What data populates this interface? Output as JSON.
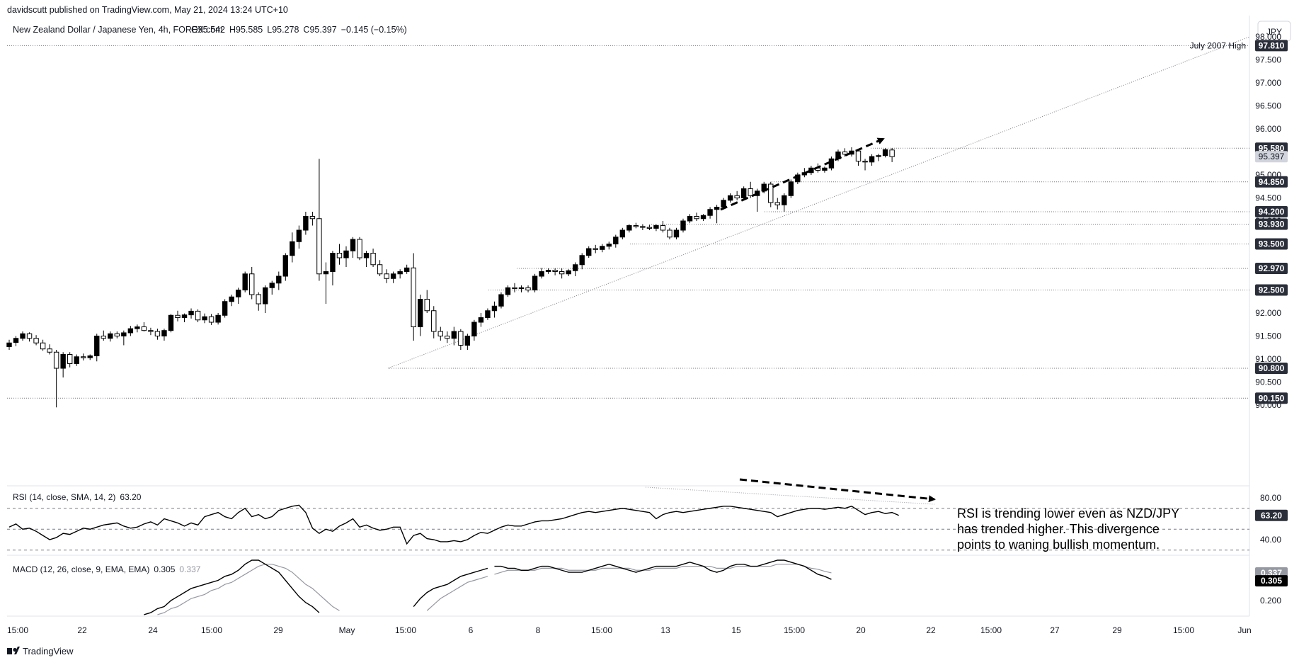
{
  "published": "davidscutt published on TradingView.com, May 21, 2024 13:24 UTC+10",
  "brand": "TradingView",
  "chart_data": {
    "type": "candlestick",
    "title": "New Zealand Dollar / Japanese Yen, 4h, FOREX.com",
    "ohlc_readout": {
      "O": "95.542",
      "H": "95.585",
      "L": "95.278",
      "C": "95.397",
      "change": "−0.145 (−0.15%)"
    },
    "currency": "JPY",
    "price_axis": {
      "min": 89.93,
      "max": 98.1,
      "ticks": [
        "90.000",
        "90.500",
        "91.000",
        "91.500",
        "92.000",
        "92.500",
        "93.000",
        "93.500",
        "94.000",
        "94.500",
        "95.000",
        "95.500",
        "96.000",
        "96.500",
        "97.000",
        "97.500",
        "98.000"
      ]
    },
    "time_axis": {
      "ticks": [
        "15:00",
        "22",
        "24",
        "15:00",
        "29",
        "May",
        "15:00",
        "6",
        "8",
        "15:00",
        "13",
        "15",
        "15:00",
        "20",
        "22",
        "15:00",
        "27",
        "29",
        "15:00",
        "Jun"
      ]
    },
    "price_levels": [
      {
        "value": "97.810",
        "note": "July 2007 High"
      },
      {
        "value": "95.580"
      },
      {
        "value": "94.850"
      },
      {
        "value": "94.200"
      },
      {
        "value": "93.930"
      },
      {
        "value": "93.500"
      },
      {
        "value": "92.970"
      },
      {
        "value": "92.500"
      },
      {
        "value": "90.800"
      },
      {
        "value": "90.150"
      }
    ],
    "current_price": "95.397",
    "candles": [
      [
        91.27,
        91.42,
        91.2,
        91.35
      ],
      [
        91.36,
        91.5,
        91.28,
        91.45
      ],
      [
        91.45,
        91.6,
        91.4,
        91.55
      ],
      [
        91.55,
        91.58,
        91.38,
        91.45
      ],
      [
        91.45,
        91.52,
        91.3,
        91.35
      ],
      [
        91.35,
        91.42,
        91.18,
        91.22
      ],
      [
        91.22,
        91.32,
        91.1,
        91.15
      ],
      [
        91.15,
        91.2,
        89.95,
        90.8
      ],
      [
        90.8,
        91.15,
        90.6,
        91.1
      ],
      [
        91.1,
        91.15,
        90.82,
        90.9
      ],
      [
        90.9,
        91.1,
        90.85,
        91.05
      ],
      [
        91.05,
        91.12,
        90.97,
        91.03
      ],
      [
        91.03,
        91.1,
        90.98,
        91.07
      ],
      [
        91.07,
        91.55,
        90.95,
        91.5
      ],
      [
        91.5,
        91.62,
        91.4,
        91.45
      ],
      [
        91.45,
        91.6,
        91.38,
        91.55
      ],
      [
        91.55,
        91.6,
        91.45,
        91.5
      ],
      [
        91.5,
        91.62,
        91.3,
        91.57
      ],
      [
        91.57,
        91.72,
        91.5,
        91.66
      ],
      [
        91.66,
        91.75,
        91.58,
        91.7
      ],
      [
        91.7,
        91.8,
        91.6,
        91.62
      ],
      [
        91.62,
        91.68,
        91.52,
        91.6
      ],
      [
        91.6,
        91.66,
        91.42,
        91.5
      ],
      [
        91.5,
        91.66,
        91.4,
        91.62
      ],
      [
        91.62,
        91.98,
        91.58,
        91.95
      ],
      [
        91.95,
        92.05,
        91.82,
        91.9
      ],
      [
        91.9,
        91.99,
        91.8,
        91.96
      ],
      [
        91.96,
        92.1,
        91.88,
        92.04
      ],
      [
        92.04,
        92.08,
        91.8,
        91.85
      ],
      [
        91.85,
        91.99,
        91.78,
        91.92
      ],
      [
        91.92,
        91.98,
        91.74,
        91.8
      ],
      [
        91.8,
        92.0,
        91.75,
        91.95
      ],
      [
        91.95,
        92.3,
        91.9,
        92.25
      ],
      [
        92.25,
        92.4,
        92.15,
        92.35
      ],
      [
        92.35,
        92.55,
        92.2,
        92.5
      ],
      [
        92.5,
        92.9,
        92.45,
        92.85
      ],
      [
        92.85,
        93.0,
        92.3,
        92.4
      ],
      [
        92.4,
        92.45,
        92.05,
        92.2
      ],
      [
        92.2,
        92.6,
        92.0,
        92.55
      ],
      [
        92.55,
        92.7,
        92.4,
        92.65
      ],
      [
        92.65,
        92.9,
        92.5,
        92.8
      ],
      [
        92.8,
        93.3,
        92.7,
        93.25
      ],
      [
        93.25,
        93.75,
        93.1,
        93.55
      ],
      [
        93.55,
        93.9,
        93.4,
        93.8
      ],
      [
        93.8,
        94.2,
        93.7,
        94.1
      ],
      [
        94.1,
        94.2,
        93.9,
        94.05
      ],
      [
        94.05,
        95.35,
        92.7,
        92.85
      ],
      [
        92.85,
        93.1,
        92.2,
        92.9
      ],
      [
        92.9,
        93.35,
        92.6,
        93.3
      ],
      [
        93.3,
        93.5,
        93.05,
        93.2
      ],
      [
        93.2,
        93.45,
        93.0,
        93.35
      ],
      [
        93.35,
        93.65,
        93.2,
        93.6
      ],
      [
        93.6,
        93.65,
        93.15,
        93.2
      ],
      [
        93.2,
        93.35,
        93.0,
        93.3
      ],
      [
        93.3,
        93.4,
        93.0,
        93.05
      ],
      [
        93.05,
        93.15,
        92.8,
        92.85
      ],
      [
        92.85,
        92.95,
        92.65,
        92.75
      ],
      [
        92.75,
        92.9,
        92.65,
        92.85
      ],
      [
        92.85,
        92.95,
        92.75,
        92.9
      ],
      [
        92.9,
        93.05,
        92.85,
        92.98
      ],
      [
        92.98,
        93.3,
        91.4,
        91.7
      ],
      [
        91.7,
        92.4,
        91.5,
        92.3
      ],
      [
        92.3,
        92.5,
        92.0,
        92.05
      ],
      [
        92.05,
        92.15,
        91.45,
        91.6
      ],
      [
        91.6,
        91.7,
        91.4,
        91.5
      ],
      [
        91.5,
        91.6,
        91.35,
        91.45
      ],
      [
        91.45,
        91.7,
        91.3,
        91.6
      ],
      [
        91.6,
        91.65,
        91.2,
        91.3
      ],
      [
        91.3,
        91.55,
        91.2,
        91.5
      ],
      [
        91.5,
        91.85,
        91.4,
        91.8
      ],
      [
        91.8,
        92.0,
        91.7,
        91.9
      ],
      [
        91.9,
        92.1,
        91.85,
        92.05
      ],
      [
        92.05,
        92.25,
        91.9,
        92.15
      ],
      [
        92.15,
        92.45,
        92.1,
        92.4
      ],
      [
        92.4,
        92.6,
        92.35,
        92.55
      ],
      [
        92.55,
        92.65,
        92.45,
        92.53
      ],
      [
        92.53,
        92.6,
        92.45,
        92.55
      ],
      [
        92.55,
        92.6,
        92.45,
        92.5
      ],
      [
        92.5,
        92.85,
        92.45,
        92.8
      ],
      [
        92.8,
        92.98,
        92.75,
        92.9
      ],
      [
        92.9,
        92.97,
        92.85,
        92.93
      ],
      [
        92.93,
        92.97,
        92.82,
        92.9
      ],
      [
        92.9,
        92.97,
        92.75,
        92.85
      ],
      [
        92.85,
        92.95,
        92.8,
        92.92
      ],
      [
        92.92,
        93.1,
        92.8,
        93.05
      ],
      [
        93.05,
        93.3,
        92.95,
        93.25
      ],
      [
        93.25,
        93.45,
        93.2,
        93.4
      ],
      [
        93.4,
        93.48,
        93.3,
        93.38
      ],
      [
        93.38,
        93.5,
        93.32,
        93.45
      ],
      [
        93.45,
        93.55,
        93.38,
        93.5
      ],
      [
        93.5,
        93.7,
        93.42,
        93.65
      ],
      [
        93.65,
        93.85,
        93.6,
        93.8
      ],
      [
        93.8,
        93.93,
        93.75,
        93.9
      ],
      [
        93.9,
        93.96,
        93.84,
        93.88
      ],
      [
        93.88,
        93.93,
        93.8,
        93.86
      ],
      [
        93.86,
        93.92,
        93.8,
        93.84
      ],
      [
        93.84,
        93.93,
        93.78,
        93.9
      ],
      [
        93.9,
        94.0,
        93.75,
        93.8
      ],
      [
        93.8,
        93.85,
        93.6,
        93.65
      ],
      [
        93.65,
        93.85,
        93.6,
        93.8
      ],
      [
        93.8,
        94.05,
        93.75,
        94.0
      ],
      [
        94.0,
        94.15,
        93.95,
        94.1
      ],
      [
        94.1,
        94.18,
        94.0,
        94.05
      ],
      [
        94.05,
        94.15,
        94.0,
        94.12
      ],
      [
        94.12,
        94.3,
        94.05,
        94.25
      ],
      [
        94.25,
        94.35,
        93.95,
        94.3
      ],
      [
        94.3,
        94.5,
        94.25,
        94.45
      ],
      [
        94.45,
        94.6,
        94.4,
        94.55
      ],
      [
        94.55,
        94.65,
        94.45,
        94.5
      ],
      [
        94.5,
        94.75,
        94.45,
        94.7
      ],
      [
        94.7,
        94.85,
        94.5,
        94.55
      ],
      [
        94.55,
        94.7,
        94.2,
        94.65
      ],
      [
        94.65,
        94.85,
        94.6,
        94.8
      ],
      [
        94.8,
        94.85,
        94.3,
        94.4
      ],
      [
        94.4,
        94.5,
        94.25,
        94.35
      ],
      [
        94.35,
        94.6,
        94.2,
        94.55
      ],
      [
        94.55,
        94.9,
        94.5,
        94.85
      ],
      [
        94.85,
        95.05,
        94.8,
        95.0
      ],
      [
        95.0,
        95.15,
        94.95,
        95.05
      ],
      [
        95.05,
        95.2,
        95.0,
        95.15
      ],
      [
        95.15,
        95.25,
        95.05,
        95.1
      ],
      [
        95.1,
        95.18,
        95.05,
        95.15
      ],
      [
        95.15,
        95.4,
        95.1,
        95.35
      ],
      [
        95.35,
        95.55,
        95.3,
        95.5
      ],
      [
        95.5,
        95.58,
        95.4,
        95.45
      ],
      [
        95.45,
        95.6,
        95.4,
        95.52
      ],
      [
        95.52,
        95.56,
        95.2,
        95.3
      ],
      [
        95.3,
        95.35,
        95.1,
        95.28
      ],
      [
        95.28,
        95.45,
        95.2,
        95.4
      ],
      [
        95.4,
        95.46,
        95.3,
        95.42
      ],
      [
        95.42,
        95.58,
        95.38,
        95.55
      ],
      [
        95.542,
        95.585,
        95.278,
        95.397
      ]
    ],
    "rsi": {
      "label": "RSI (14, close, SMA, 14, 2)",
      "value": "63.20",
      "ticks": [
        "80.00",
        "40.00"
      ],
      "levels": [
        70,
        50,
        30
      ],
      "values": [
        52,
        55,
        50,
        51,
        48,
        44,
        40,
        42,
        46,
        45,
        48,
        51,
        50,
        52,
        54,
        55,
        56,
        53,
        51,
        52,
        55,
        57,
        54,
        60,
        58,
        56,
        53,
        56,
        54,
        62,
        64,
        66,
        62,
        60,
        66,
        70,
        62,
        64,
        60,
        62,
        68,
        70,
        72,
        73,
        66,
        51,
        46,
        50,
        48,
        53,
        56,
        60,
        52,
        54,
        51,
        49,
        50,
        52,
        52,
        36,
        44,
        46,
        41,
        40,
        38,
        38,
        39,
        38,
        40,
        44,
        47,
        46,
        49,
        52,
        54,
        53,
        53,
        55,
        57,
        58,
        58,
        59,
        60,
        62,
        64,
        66,
        67,
        66,
        67,
        68,
        69,
        70,
        69,
        68,
        67,
        66,
        60,
        64,
        66,
        67,
        66,
        67,
        68,
        69,
        70,
        71,
        72,
        72,
        71,
        70,
        69,
        68,
        67,
        66,
        62,
        64,
        66,
        68,
        69,
        70,
        70,
        69,
        70,
        71,
        70,
        72,
        68,
        64,
        66,
        67,
        65,
        66,
        63.2
      ]
    },
    "macd": {
      "label": "MACD (12, 26, close, 9, EMA, EMA)",
      "macd_value": "0.305",
      "signal_value": "0.337",
      "tick": "0.200",
      "gaps": [
        [
          0,
          16
        ],
        [
          56,
          72
        ]
      ],
      "macd": [
        0.05,
        0.06,
        0.07,
        0.07,
        0.06,
        0.05,
        0.04,
        0.03,
        0.02,
        0.02,
        0.03,
        0.04,
        0.05,
        0.06,
        0.07,
        0.08,
        0.09,
        0.1,
        0.11,
        0.12,
        0.13,
        0.14,
        0.16,
        0.17,
        0.2,
        0.22,
        0.24,
        0.26,
        0.27,
        0.28,
        0.29,
        0.3,
        0.32,
        0.33,
        0.35,
        0.38,
        0.4,
        0.4,
        0.38,
        0.36,
        0.34,
        0.3,
        0.26,
        0.22,
        0.19,
        0.17,
        0.14,
        0.1,
        0.08,
        0.07,
        0.05,
        0.04,
        0.03,
        0.02,
        0.01,
        0.0,
        0.0,
        0.02,
        0.06,
        0.12,
        0.17,
        0.21,
        0.24,
        0.26,
        0.27,
        0.28,
        0.3,
        0.32,
        0.33,
        0.34,
        0.35,
        0.36,
        0.37,
        0.37,
        0.36,
        0.36,
        0.35,
        0.35,
        0.36,
        0.37,
        0.37,
        0.36,
        0.35,
        0.34,
        0.34,
        0.34,
        0.35,
        0.36,
        0.37,
        0.38,
        0.37,
        0.36,
        0.35,
        0.34,
        0.35,
        0.36,
        0.37,
        0.37,
        0.37,
        0.37,
        0.38,
        0.39,
        0.38,
        0.37,
        0.35,
        0.34,
        0.35,
        0.37,
        0.38,
        0.38,
        0.37,
        0.37,
        0.38,
        0.39,
        0.4,
        0.4,
        0.39,
        0.38,
        0.37,
        0.35,
        0.33,
        0.32,
        0.305
      ],
      "signal": [
        0.04,
        0.05,
        0.05,
        0.06,
        0.06,
        0.06,
        0.05,
        0.05,
        0.04,
        0.04,
        0.04,
        0.04,
        0.04,
        0.05,
        0.05,
        0.06,
        0.07,
        0.08,
        0.09,
        0.1,
        0.11,
        0.12,
        0.13,
        0.14,
        0.16,
        0.17,
        0.19,
        0.21,
        0.22,
        0.23,
        0.25,
        0.26,
        0.28,
        0.29,
        0.31,
        0.33,
        0.35,
        0.37,
        0.38,
        0.38,
        0.37,
        0.36,
        0.34,
        0.31,
        0.28,
        0.26,
        0.23,
        0.2,
        0.17,
        0.15,
        0.12,
        0.1,
        0.08,
        0.06,
        0.04,
        0.03,
        0.02,
        0.02,
        0.03,
        0.05,
        0.08,
        0.11,
        0.15,
        0.18,
        0.21,
        0.23,
        0.25,
        0.27,
        0.29,
        0.3,
        0.31,
        0.32,
        0.33,
        0.34,
        0.35,
        0.35,
        0.35,
        0.35,
        0.35,
        0.36,
        0.36,
        0.36,
        0.36,
        0.35,
        0.35,
        0.35,
        0.35,
        0.35,
        0.36,
        0.36,
        0.36,
        0.36,
        0.36,
        0.35,
        0.35,
        0.35,
        0.36,
        0.36,
        0.36,
        0.36,
        0.37,
        0.37,
        0.37,
        0.37,
        0.37,
        0.36,
        0.36,
        0.36,
        0.37,
        0.37,
        0.37,
        0.37,
        0.37,
        0.37,
        0.38,
        0.38,
        0.38,
        0.38,
        0.37,
        0.36,
        0.355,
        0.345,
        0.337
      ]
    },
    "annotation": [
      "RSI is trending lower even as NZD/JPY",
      "has trended higher. This divergence",
      "points to waning bullish momentum."
    ]
  }
}
